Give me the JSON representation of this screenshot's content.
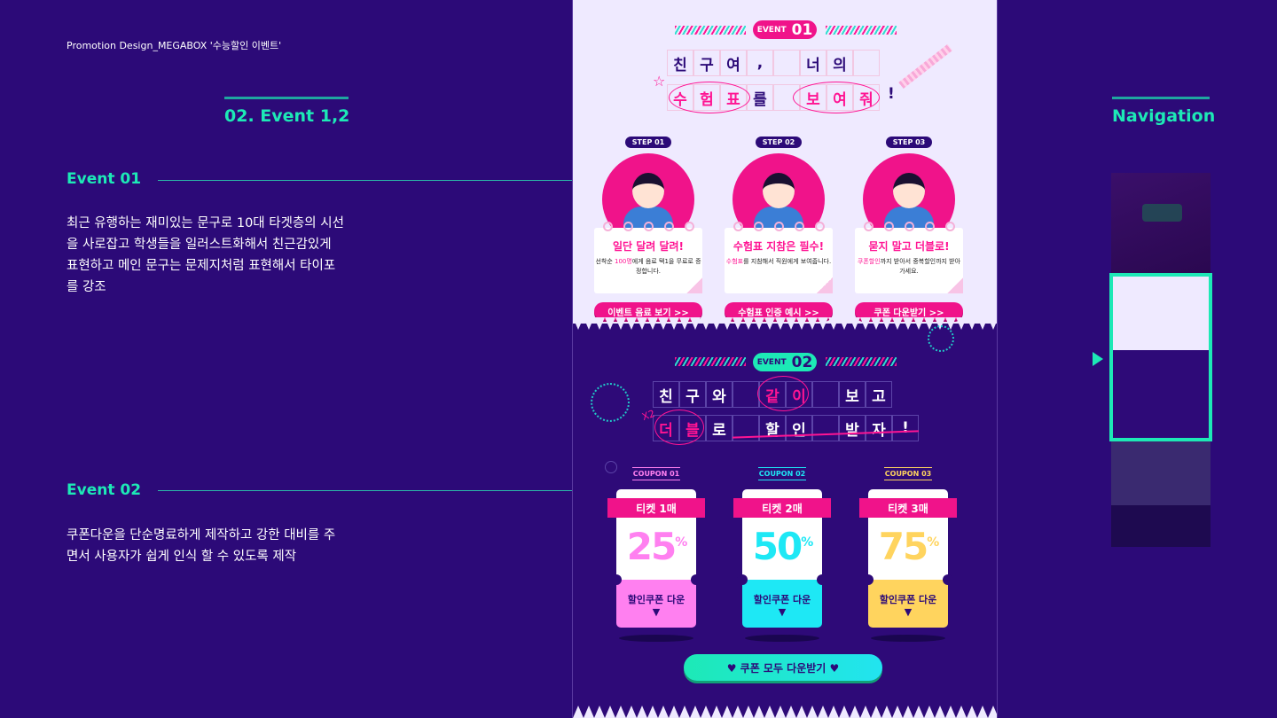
{
  "caption": "Promotion Design_MEGABOX '수능할인 이벤트'",
  "section_title": "02. Event 1,2",
  "nav_title": "Navigation",
  "events_desc": [
    {
      "heading": "Event 01",
      "lines": [
        "최근 유행하는 재미있는 문구로 10대 타겟층의 시선",
        "을 사로잡고 학생들을 일러스트화해서 친근감있게",
        "표현하고 메인 문구는 문제지처럼 표현해서 타이포",
        "를 강조"
      ]
    },
    {
      "heading": "Event 02",
      "lines": [
        "쿠폰다운을 단순명료하게 제작하고 강한 대비를 주",
        "면서 사용자가 쉽게 인식 할 수 있도록 제작"
      ]
    }
  ],
  "event1": {
    "badge_small": "EVENT",
    "badge_num": "01",
    "row1": [
      "친",
      "구",
      "여",
      ",",
      "",
      "너",
      "의",
      ""
    ],
    "row2": [
      "수",
      "험",
      "표",
      "를",
      "",
      "보",
      "여",
      "줘"
    ],
    "exclaim": "!",
    "steps": [
      {
        "label": "STEP 01",
        "title": "일단 달려 달려!",
        "desc_hl": "100명",
        "desc_pre": "선착순 ",
        "desc_post": "에게 음료 택1을 무료로 증정합니다.",
        "button": "이벤트 음료 보기 >>"
      },
      {
        "label": "STEP 02",
        "title": "수험표 지참은 필수!",
        "desc_hl": "수험표",
        "desc_pre": "",
        "desc_post": "를 지참해서 직원에게 보여줍니다.",
        "button": "수험표 인증 예시 >>"
      },
      {
        "label": "STEP 03",
        "title": "묻지 말고 더블로!",
        "desc_hl": "쿠폰할인",
        "desc_pre": "",
        "desc_post": "까지 받아서 중복할인까지 받아가세요.",
        "button": "쿠폰 다운받기 >>"
      }
    ]
  },
  "event2": {
    "badge_small": "EVENT",
    "badge_num": "02",
    "row1": [
      "친",
      "구",
      "와",
      "",
      "같",
      "이",
      "",
      "보",
      "고"
    ],
    "row2": [
      "더",
      "블",
      "로",
      "",
      "할",
      "인",
      "",
      "받",
      "자",
      "!"
    ],
    "x2": "X2",
    "coupons": [
      {
        "label": "COUPON 01",
        "ticket": "티켓 1매",
        "percent": "25",
        "unit": "%",
        "button": "할인쿠폰 다운",
        "color": "#ff80f0"
      },
      {
        "label": "COUPON 02",
        "ticket": "티켓 2매",
        "percent": "50",
        "unit": "%",
        "button": "할인쿠폰 다운",
        "color": "#1ee8f5"
      },
      {
        "label": "COUPON 03",
        "ticket": "티켓 3매",
        "percent": "75",
        "unit": "%",
        "button": "할인쿠폰 다운",
        "color": "#ffd45e"
      }
    ],
    "all_button": "♥ 쿠폰 모두 다운받기 ♥"
  },
  "colors": {
    "background": "#2c0a78",
    "accent": "#1de9b6",
    "pink": "#f0138a"
  }
}
